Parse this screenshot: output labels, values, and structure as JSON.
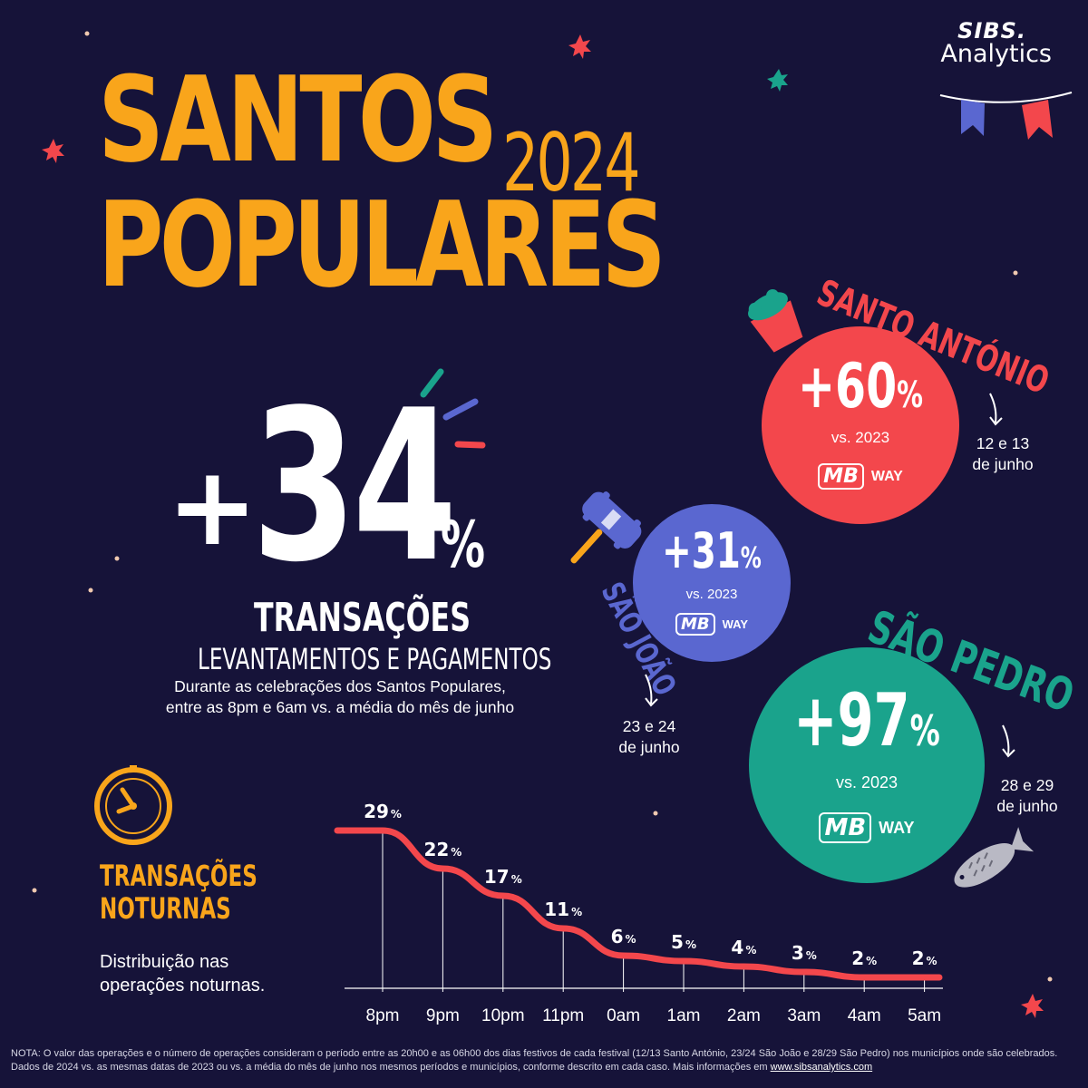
{
  "header": {
    "title_line1": "SANTOS",
    "title_year": "2024",
    "title_line2": "POPULARES",
    "logo_brand": "SIBS.",
    "logo_product": "Analytics"
  },
  "hero": {
    "plus": "+",
    "value": "34",
    "unit": "%",
    "title": "TRANSAÇÕES",
    "subtitle": "LEVANTAMENTOS E PAGAMENTOS",
    "description": "Durante as celebrações dos Santos Populares, entre as 8pm e 6am vs. a média do mês de junho"
  },
  "saints": {
    "santo_antonio": {
      "name": "SANTO ANTÓNIO",
      "value": "+60",
      "unit": "%",
      "comparison": "vs. 2023",
      "dates_line1": "12 e 13",
      "dates_line2": "de junho",
      "color": "#f3474c"
    },
    "sao_joao": {
      "name": "SÃO JOÃO",
      "value": "+31",
      "unit": "%",
      "comparison": "vs. 2023",
      "dates_line1": "23 e 24",
      "dates_line2": "de junho",
      "color": "#5a67d0"
    },
    "sao_pedro": {
      "name": "SÃO PEDRO",
      "value": "+97",
      "unit": "%",
      "comparison": "vs. 2023",
      "dates_line1": "28 e 29",
      "dates_line2": "de junho",
      "color": "#1aa38c"
    }
  },
  "payment": {
    "mb": "MB",
    "way": "WAY"
  },
  "nocturnal": {
    "title_line1": "TRANSAÇÕES",
    "title_line2": "NOTURNAS",
    "description_line1": "Distribuição nas",
    "description_line2": "operações noturnas."
  },
  "chart_data": {
    "type": "line",
    "title": "",
    "xlabel": "",
    "ylabel": "",
    "categories": [
      "8pm",
      "9pm",
      "10pm",
      "11pm",
      "0am",
      "1am",
      "2am",
      "3am",
      "4am",
      "5am"
    ],
    "values": [
      29,
      22,
      17,
      11,
      6,
      5,
      4,
      3,
      2,
      2
    ],
    "unit": "%",
    "ylim": [
      0,
      30
    ],
    "grid": false,
    "line_color": "#f3474c"
  },
  "footnote": {
    "text": "NOTA: O valor das operações e o número de operações consideram o período entre as 20h00 e as 06h00 dos dias festivos de cada festival (12/13 Santo António, 23/24 São João e 28/29 São Pedro) nos municípios onde são celebrados. Dados de 2024 vs. as mesmas datas de 2023 ou vs. a média do mês de junho nos mesmos períodos e municípios, conforme descrito em cada caso. Mais informações em",
    "link": "www.sibsanalytics.com"
  },
  "colors": {
    "background": "#161339",
    "accent": "#f9a51b",
    "white": "#ffffff"
  }
}
